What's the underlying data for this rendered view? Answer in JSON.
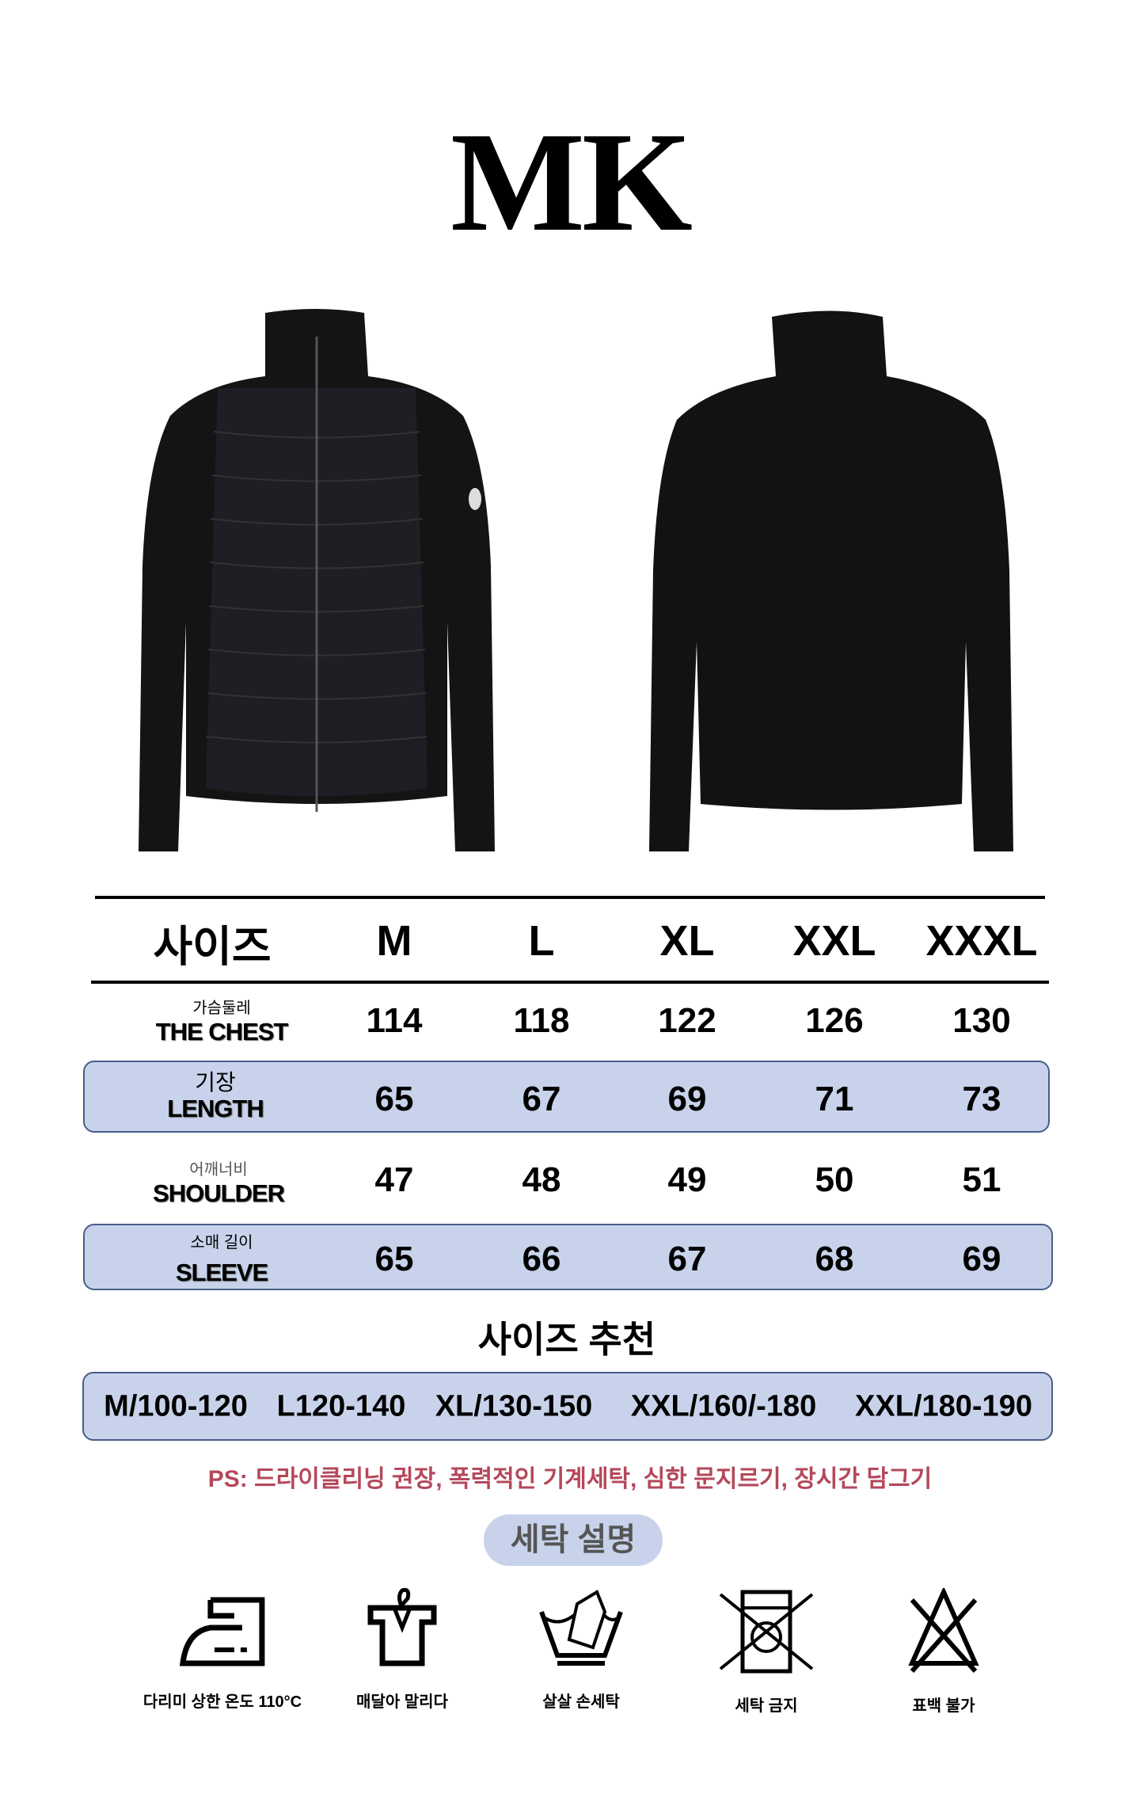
{
  "brand": "MK",
  "table": {
    "header": [
      "사이즈",
      "M",
      "L",
      "XL",
      "XXL",
      "XXXL"
    ],
    "rows": [
      {
        "ko": "가슴둘레",
        "en": "THE CHEST",
        "values": [
          "114",
          "118",
          "122",
          "126",
          "130"
        ],
        "highlight": false
      },
      {
        "ko": "기장",
        "en": "LENGTH",
        "values": [
          "65",
          "67",
          "69",
          "71",
          "73"
        ],
        "highlight": true
      },
      {
        "ko": "어깨너비",
        "en": "SHOULDER",
        "values": [
          "47",
          "48",
          "49",
          "50",
          "51"
        ],
        "highlight": false
      },
      {
        "ko": "소매 길이",
        "en": "SLEEVE",
        "values": [
          "65",
          "66",
          "67",
          "68",
          "69"
        ],
        "highlight": true
      }
    ]
  },
  "recommend": {
    "title": "사이즈 추천",
    "items": [
      "M/100-120",
      "L120-140",
      "XL/130-150",
      "XXL/160/-180",
      "XXL/180-190"
    ]
  },
  "ps_note": "PS: 드라이클리닝 권장, 폭력적인 기계세탁, 심한 문지르기, 장시간 담그기",
  "care": {
    "title": "세탁 설명",
    "items": [
      {
        "icon": "iron-icon",
        "label": "다리미 상한 온도 110°C"
      },
      {
        "icon": "hang-dry-icon",
        "label": "매달아 말리다"
      },
      {
        "icon": "hand-wash-icon",
        "label": "살살 손세탁"
      },
      {
        "icon": "no-machine-wash-icon",
        "label": "세탁 금지"
      },
      {
        "icon": "no-bleach-icon",
        "label": "표백 불가"
      }
    ]
  },
  "colors": {
    "band": "#c8d3eb",
    "band_border": "#4a5c8a",
    "ps": "#b5485a"
  }
}
